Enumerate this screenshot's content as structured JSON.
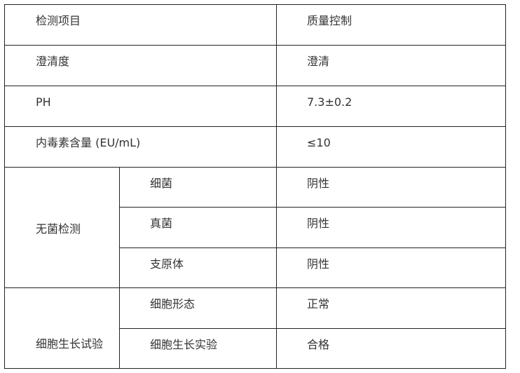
{
  "table": {
    "header": [
      "检测项目",
      "质量控制"
    ],
    "rows": [
      {
        "item": "澄清度",
        "value": "澄清"
      },
      {
        "item": "PH",
        "value": "7.3±0.2"
      },
      {
        "item": "内毒素含量 (EU/mL)",
        "value": "≤10"
      }
    ],
    "groups": [
      {
        "label": "无菌检测",
        "subs": [
          {
            "item": "细菌",
            "value": "阴性"
          },
          {
            "item": "真菌",
            "value": "阴性"
          },
          {
            "item": "支原体",
            "value": "阴性"
          }
        ]
      },
      {
        "label": "细胞生长试验",
        "subs": [
          {
            "item": "细胞形态",
            "value": "正常"
          },
          {
            "item": "细胞生长实验",
            "value": "合格"
          }
        ]
      }
    ]
  }
}
